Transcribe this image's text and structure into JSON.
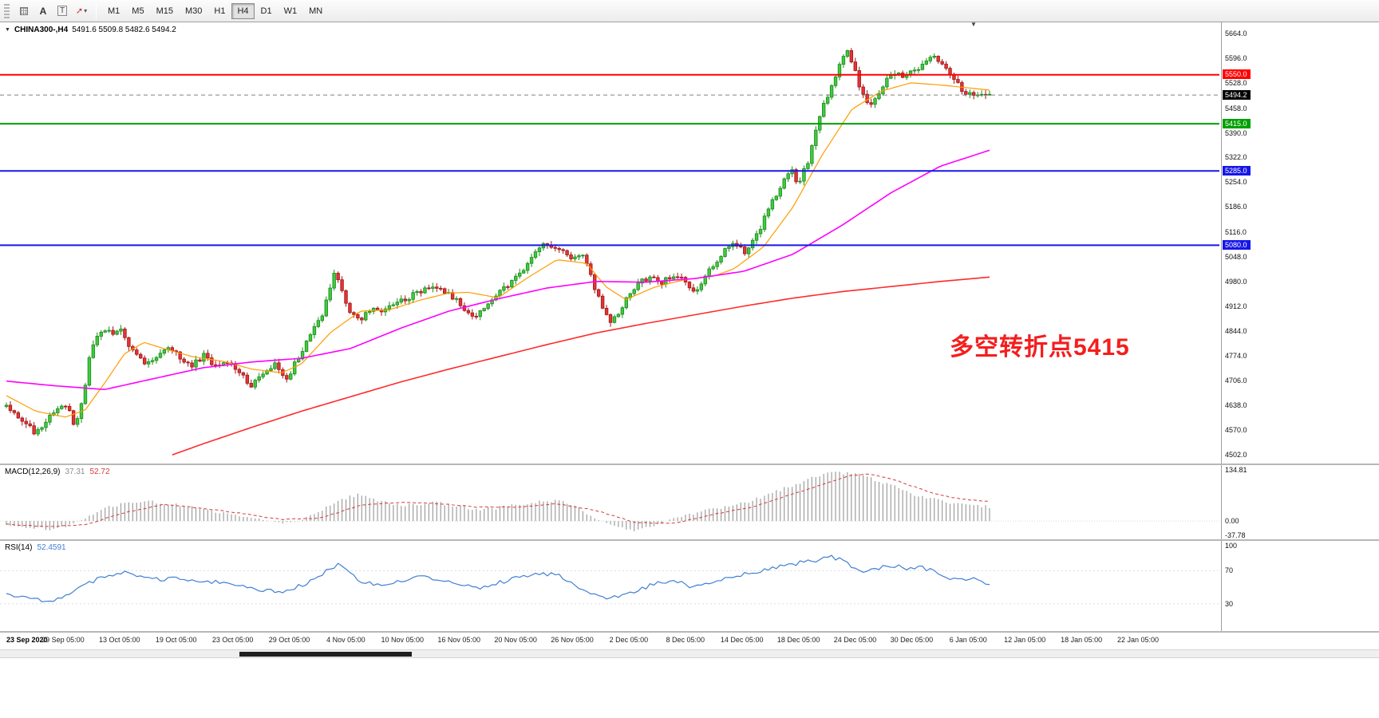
{
  "toolbar": {
    "tools": {
      "text_label": "A",
      "textbox_label": "T"
    },
    "timeframes": [
      "M1",
      "M5",
      "M15",
      "M30",
      "H1",
      "H4",
      "D1",
      "W1",
      "MN"
    ],
    "active_timeframe": "H4"
  },
  "chart": {
    "title_symbol": "CHINA300-,H4",
    "title_quote": "5491.6 5509.8 5482.6 5494.2"
  },
  "annotation": {
    "text": "多空转折点5415"
  },
  "macd_label": {
    "name": "MACD(12,26,9)",
    "value_main": "37.31",
    "value_signal": "52.72"
  },
  "rsi_label": {
    "name": "RSI(14)",
    "value": "52.4591"
  },
  "chart_data": {
    "type": "candlestick",
    "symbol": "CHINA300-",
    "timeframe": "H4",
    "quote_ohlc": {
      "open": 5491.6,
      "high": 5509.8,
      "low": 5482.6,
      "close": 5494.2
    },
    "price_range": [
      4502.0,
      5664.0
    ],
    "price_axis_ticks": [
      "5664.0",
      "5596.0",
      "5528.0",
      "5458.0",
      "5390.0",
      "5322.0",
      "5254.0",
      "5186.0",
      "5116.0",
      "5048.0",
      "4980.0",
      "4912.0",
      "4844.0",
      "4774.0",
      "4706.0",
      "4638.0",
      "4570.0",
      "4502.0"
    ],
    "levels": [
      {
        "price": 5550.0,
        "label": "5550.0",
        "color": "#ff0000",
        "style": "solid",
        "width": 2
      },
      {
        "price": 5494.2,
        "label": "5494.2",
        "color": "#808080",
        "style": "dashed",
        "width": 1,
        "current": true,
        "tag_bg": "#000000"
      },
      {
        "price": 5415.0,
        "label": "5415.0",
        "color": "#00a000",
        "style": "solid",
        "width": 2
      },
      {
        "price": 5285.0,
        "label": "5285.0",
        "color": "#1616e8",
        "style": "solid",
        "width": 2
      },
      {
        "price": 5080.0,
        "label": "5080.0",
        "color": "#1616e8",
        "style": "solid",
        "width": 2
      }
    ],
    "time_labels": [
      "23 Sep 2020",
      "29 Sep 05:00",
      "13 Oct 05:00",
      "19 Oct 05:00",
      "23 Oct 05:00",
      "29 Oct 05:00",
      "4 Nov 05:00",
      "10 Nov 05:00",
      "16 Nov 05:00",
      "20 Nov 05:00",
      "26 Nov 05:00",
      "2 Dec 05:00",
      "8 Dec 05:00",
      "14 Dec 05:00",
      "18 Dec 05:00",
      "24 Dec 05:00",
      "30 Dec 05:00",
      "6 Jan 05:00",
      "12 Jan 05:00",
      "18 Jan 05:00",
      "22 Jan 05:00"
    ],
    "bars": 250,
    "price_path": [
      [
        0,
        4635
      ],
      [
        0.018,
        4590
      ],
      [
        0.03,
        4560
      ],
      [
        0.046,
        4610
      ],
      [
        0.062,
        4640
      ],
      [
        0.068,
        4585
      ],
      [
        0.075,
        4625
      ],
      [
        0.079,
        4680
      ],
      [
        0.084,
        4760
      ],
      [
        0.089,
        4810
      ],
      [
        0.099,
        4855
      ],
      [
        0.107,
        4830
      ],
      [
        0.115,
        4850
      ],
      [
        0.123,
        4810
      ],
      [
        0.133,
        4780
      ],
      [
        0.144,
        4750
      ],
      [
        0.156,
        4775
      ],
      [
        0.166,
        4800
      ],
      [
        0.176,
        4770
      ],
      [
        0.188,
        4750
      ],
      [
        0.201,
        4775
      ],
      [
        0.213,
        4745
      ],
      [
        0.225,
        4760
      ],
      [
        0.237,
        4730
      ],
      [
        0.249,
        4690
      ],
      [
        0.261,
        4720
      ],
      [
        0.274,
        4750
      ],
      [
        0.284,
        4700
      ],
      [
        0.295,
        4760
      ],
      [
        0.308,
        4830
      ],
      [
        0.32,
        4880
      ],
      [
        0.328,
        4950
      ],
      [
        0.334,
        5005
      ],
      [
        0.343,
        4940
      ],
      [
        0.351,
        4890
      ],
      [
        0.36,
        4870
      ],
      [
        0.371,
        4905
      ],
      [
        0.383,
        4890
      ],
      [
        0.395,
        4920
      ],
      [
        0.407,
        4935
      ],
      [
        0.42,
        4950
      ],
      [
        0.432,
        4970
      ],
      [
        0.442,
        4955
      ],
      [
        0.452,
        4940
      ],
      [
        0.464,
        4910
      ],
      [
        0.476,
        4880
      ],
      [
        0.489,
        4915
      ],
      [
        0.501,
        4950
      ],
      [
        0.513,
        4975
      ],
      [
        0.525,
        5010
      ],
      [
        0.537,
        5060
      ],
      [
        0.549,
        5085
      ],
      [
        0.562,
        5070
      ],
      [
        0.574,
        5040
      ],
      [
        0.584,
        5060
      ],
      [
        0.594,
        5000
      ],
      [
        0.604,
        4920
      ],
      [
        0.614,
        4870
      ],
      [
        0.623,
        4895
      ],
      [
        0.633,
        4940
      ],
      [
        0.643,
        4975
      ],
      [
        0.655,
        4995
      ],
      [
        0.667,
        4975
      ],
      [
        0.679,
        5000
      ],
      [
        0.69,
        4985
      ],
      [
        0.7,
        4950
      ],
      [
        0.709,
        4985
      ],
      [
        0.72,
        5030
      ],
      [
        0.73,
        5065
      ],
      [
        0.74,
        5090
      ],
      [
        0.75,
        5060
      ],
      [
        0.76,
        5090
      ],
      [
        0.769,
        5140
      ],
      [
        0.779,
        5200
      ],
      [
        0.789,
        5255
      ],
      [
        0.799,
        5290
      ],
      [
        0.805,
        5250
      ],
      [
        0.815,
        5310
      ],
      [
        0.825,
        5420
      ],
      [
        0.836,
        5500
      ],
      [
        0.846,
        5570
      ],
      [
        0.854,
        5620
      ],
      [
        0.86,
        5585
      ],
      [
        0.868,
        5520
      ],
      [
        0.877,
        5460
      ],
      [
        0.885,
        5490
      ],
      [
        0.893,
        5530
      ],
      [
        0.903,
        5555
      ],
      [
        0.912,
        5540
      ],
      [
        0.923,
        5560
      ],
      [
        0.933,
        5580
      ],
      [
        0.943,
        5600
      ],
      [
        0.953,
        5575
      ],
      [
        0.963,
        5540
      ],
      [
        0.972,
        5510
      ],
      [
        0.982,
        5490
      ],
      [
        0.99,
        5505
      ],
      [
        1,
        5494
      ]
    ],
    "ma_fast": {
      "color": "#ff9c00",
      "points": [
        [
          0,
          4665
        ],
        [
          0.03,
          4622
        ],
        [
          0.06,
          4606
        ],
        [
          0.08,
          4625
        ],
        [
          0.1,
          4700
        ],
        [
          0.12,
          4780
        ],
        [
          0.14,
          4812
        ],
        [
          0.16,
          4795
        ],
        [
          0.19,
          4772
        ],
        [
          0.22,
          4760
        ],
        [
          0.25,
          4738
        ],
        [
          0.28,
          4728
        ],
        [
          0.3,
          4752
        ],
        [
          0.33,
          4840
        ],
        [
          0.36,
          4898
        ],
        [
          0.39,
          4902
        ],
        [
          0.42,
          4928
        ],
        [
          0.45,
          4948
        ],
        [
          0.47,
          4950
        ],
        [
          0.5,
          4935
        ],
        [
          0.53,
          4990
        ],
        [
          0.56,
          5040
        ],
        [
          0.59,
          5030
        ],
        [
          0.61,
          4965
        ],
        [
          0.63,
          4930
        ],
        [
          0.66,
          4965
        ],
        [
          0.69,
          4985
        ],
        [
          0.72,
          4995
        ],
        [
          0.74,
          5015
        ],
        [
          0.77,
          5075
        ],
        [
          0.8,
          5185
        ],
        [
          0.83,
          5330
        ],
        [
          0.86,
          5455
        ],
        [
          0.89,
          5505
        ],
        [
          0.92,
          5528
        ],
        [
          0.95,
          5522
        ],
        [
          1,
          5508
        ]
      ]
    },
    "ma_mid": {
      "color": "#ff00ff",
      "points": [
        [
          0,
          4705
        ],
        [
          0.05,
          4692
        ],
        [
          0.1,
          4682
        ],
        [
          0.15,
          4712
        ],
        [
          0.2,
          4742
        ],
        [
          0.25,
          4758
        ],
        [
          0.3,
          4768
        ],
        [
          0.35,
          4795
        ],
        [
          0.4,
          4850
        ],
        [
          0.45,
          4898
        ],
        [
          0.5,
          4932
        ],
        [
          0.55,
          4962
        ],
        [
          0.6,
          4980
        ],
        [
          0.65,
          4978
        ],
        [
          0.7,
          4988
        ],
        [
          0.75,
          5008
        ],
        [
          0.8,
          5055
        ],
        [
          0.85,
          5135
        ],
        [
          0.9,
          5225
        ],
        [
          0.95,
          5298
        ],
        [
          1,
          5342
        ]
      ]
    },
    "ma_slow": {
      "color": "#ff2a2a",
      "start_t": 0.165,
      "points": [
        [
          0.165,
          4498
        ],
        [
          0.2,
          4532
        ],
        [
          0.25,
          4578
        ],
        [
          0.3,
          4622
        ],
        [
          0.35,
          4662
        ],
        [
          0.4,
          4702
        ],
        [
          0.45,
          4738
        ],
        [
          0.5,
          4772
        ],
        [
          0.55,
          4806
        ],
        [
          0.6,
          4838
        ],
        [
          0.65,
          4864
        ],
        [
          0.7,
          4888
        ],
        [
          0.75,
          4912
        ],
        [
          0.8,
          4934
        ],
        [
          0.85,
          4952
        ],
        [
          0.9,
          4966
        ],
        [
          0.95,
          4980
        ],
        [
          1,
          4992
        ]
      ]
    },
    "macd": {
      "axis_ticks": [
        "134.81",
        "0.00",
        "-37.78"
      ],
      "range": [
        -40,
        140
      ],
      "hist_color": "#9d9d9d",
      "signal_color": "#d43c3c",
      "last_macd": 37.31,
      "last_signal": 52.72,
      "histogram_path": [
        [
          0,
          -12
        ],
        [
          0.02,
          -18
        ],
        [
          0.04,
          -22
        ],
        [
          0.06,
          -15
        ],
        [
          0.08,
          8
        ],
        [
          0.1,
          32
        ],
        [
          0.12,
          48
        ],
        [
          0.14,
          52
        ],
        [
          0.16,
          47
        ],
        [
          0.18,
          40
        ],
        [
          0.2,
          30
        ],
        [
          0.22,
          22
        ],
        [
          0.24,
          12
        ],
        [
          0.26,
          4
        ],
        [
          0.28,
          -6
        ],
        [
          0.3,
          2
        ],
        [
          0.32,
          28
        ],
        [
          0.34,
          58
        ],
        [
          0.36,
          70
        ],
        [
          0.38,
          52
        ],
        [
          0.4,
          42
        ],
        [
          0.42,
          45
        ],
        [
          0.44,
          48
        ],
        [
          0.46,
          40
        ],
        [
          0.48,
          30
        ],
        [
          0.5,
          35
        ],
        [
          0.52,
          44
        ],
        [
          0.54,
          52
        ],
        [
          0.56,
          55
        ],
        [
          0.58,
          36
        ],
        [
          0.6,
          6
        ],
        [
          0.62,
          -16
        ],
        [
          0.64,
          -24
        ],
        [
          0.66,
          -12
        ],
        [
          0.68,
          8
        ],
        [
          0.7,
          22
        ],
        [
          0.72,
          32
        ],
        [
          0.74,
          40
        ],
        [
          0.76,
          55
        ],
        [
          0.78,
          75
        ],
        [
          0.8,
          95
        ],
        [
          0.82,
          115
        ],
        [
          0.84,
          130
        ],
        [
          0.86,
          127
        ],
        [
          0.88,
          112
        ],
        [
          0.9,
          94
        ],
        [
          0.92,
          74
        ],
        [
          0.94,
          60
        ],
        [
          0.96,
          48
        ],
        [
          0.98,
          41
        ],
        [
          1,
          37.31
        ]
      ],
      "signal_path": [
        [
          0,
          -8
        ],
        [
          0.04,
          -15
        ],
        [
          0.08,
          -10
        ],
        [
          0.12,
          22
        ],
        [
          0.16,
          44
        ],
        [
          0.2,
          34
        ],
        [
          0.24,
          20
        ],
        [
          0.28,
          4
        ],
        [
          0.32,
          8
        ],
        [
          0.36,
          42
        ],
        [
          0.4,
          50
        ],
        [
          0.44,
          46
        ],
        [
          0.48,
          37
        ],
        [
          0.52,
          37
        ],
        [
          0.56,
          46
        ],
        [
          0.6,
          28
        ],
        [
          0.64,
          -4
        ],
        [
          0.68,
          -6
        ],
        [
          0.72,
          18
        ],
        [
          0.76,
          38
        ],
        [
          0.8,
          72
        ],
        [
          0.84,
          105
        ],
        [
          0.86,
          122
        ],
        [
          0.88,
          124
        ],
        [
          0.9,
          112
        ],
        [
          0.92,
          94
        ],
        [
          0.94,
          76
        ],
        [
          0.96,
          63
        ],
        [
          0.98,
          56
        ],
        [
          1,
          52.72
        ]
      ]
    },
    "rsi": {
      "axis_ticks": [
        "100",
        "70",
        "30"
      ],
      "range": [
        0,
        100
      ],
      "levels": [
        70,
        30
      ],
      "color": "#3f7fd4",
      "last": 52.4591,
      "path": [
        [
          0,
          40
        ],
        [
          0.02,
          36
        ],
        [
          0.04,
          33
        ],
        [
          0.06,
          39
        ],
        [
          0.08,
          53
        ],
        [
          0.1,
          63
        ],
        [
          0.12,
          67
        ],
        [
          0.14,
          63
        ],
        [
          0.16,
          59
        ],
        [
          0.18,
          61
        ],
        [
          0.2,
          55
        ],
        [
          0.22,
          57
        ],
        [
          0.24,
          50
        ],
        [
          0.26,
          46
        ],
        [
          0.28,
          44
        ],
        [
          0.3,
          52
        ],
        [
          0.32,
          64
        ],
        [
          0.33,
          74
        ],
        [
          0.34,
          78
        ],
        [
          0.35,
          68
        ],
        [
          0.36,
          57
        ],
        [
          0.38,
          52
        ],
        [
          0.4,
          58
        ],
        [
          0.42,
          62
        ],
        [
          0.44,
          60
        ],
        [
          0.46,
          55
        ],
        [
          0.48,
          48
        ],
        [
          0.5,
          55
        ],
        [
          0.52,
          62
        ],
        [
          0.54,
          67
        ],
        [
          0.56,
          65
        ],
        [
          0.58,
          52
        ],
        [
          0.6,
          40
        ],
        [
          0.61,
          35
        ],
        [
          0.62,
          38
        ],
        [
          0.64,
          46
        ],
        [
          0.66,
          54
        ],
        [
          0.68,
          57
        ],
        [
          0.7,
          50
        ],
        [
          0.72,
          58
        ],
        [
          0.74,
          63
        ],
        [
          0.76,
          68
        ],
        [
          0.78,
          74
        ],
        [
          0.8,
          78
        ],
        [
          0.82,
          82
        ],
        [
          0.84,
          86
        ],
        [
          0.85,
          83
        ],
        [
          0.86,
          75
        ],
        [
          0.87,
          68
        ],
        [
          0.88,
          72
        ],
        [
          0.9,
          76
        ],
        [
          0.92,
          72
        ],
        [
          0.93,
          75
        ],
        [
          0.94,
          70
        ],
        [
          0.95,
          64
        ],
        [
          0.96,
          60
        ],
        [
          0.97,
          62
        ],
        [
          0.98,
          58
        ],
        [
          0.99,
          61
        ],
        [
          1,
          52.46
        ]
      ]
    }
  }
}
